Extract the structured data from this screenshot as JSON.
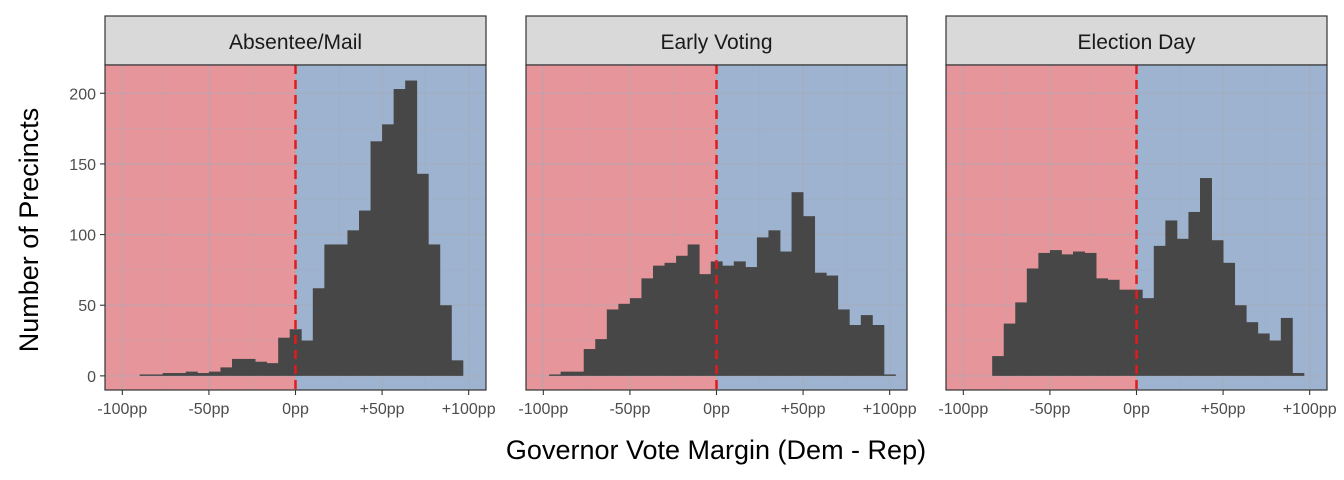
{
  "chart_data": {
    "type": "bar",
    "subtype": "faceted-histogram",
    "xlabel": "Governor Vote Margin (Dem - Rep)",
    "ylabel": "Number of Precincts",
    "xlim": [
      -110,
      110
    ],
    "ylim": [
      -10,
      220
    ],
    "x_ticks": [
      -100,
      -50,
      0,
      50,
      100
    ],
    "x_tick_labels": [
      "-100pp",
      "-50pp",
      "0pp",
      "+50pp",
      "+100pp"
    ],
    "y_ticks": [
      0,
      50,
      100,
      150,
      200
    ],
    "y_tick_labels": [
      "0",
      "50",
      "100",
      "150",
      "200"
    ],
    "bin_width": 6.67,
    "reference_line": {
      "x": 0,
      "style": "dashed",
      "color": "#e41a1c"
    },
    "background_regions": [
      {
        "from": -110,
        "to": 0,
        "color": "#e6969b"
      },
      {
        "from": 0,
        "to": 110,
        "color": "#9db3cf"
      }
    ],
    "bar_color": "#474747",
    "grid": true,
    "facets": [
      {
        "title": "Absentee/Mail",
        "bins": [
          {
            "x": -93.33,
            "y": 0
          },
          {
            "x": -86.67,
            "y": 1
          },
          {
            "x": -80,
            "y": 1
          },
          {
            "x": -73.33,
            "y": 2
          },
          {
            "x": -66.67,
            "y": 2
          },
          {
            "x": -60,
            "y": 3
          },
          {
            "x": -53.33,
            "y": 2
          },
          {
            "x": -46.67,
            "y": 3
          },
          {
            "x": -40,
            "y": 6
          },
          {
            "x": -33.33,
            "y": 12
          },
          {
            "x": -26.67,
            "y": 12
          },
          {
            "x": -20,
            "y": 10
          },
          {
            "x": -13.33,
            "y": 9
          },
          {
            "x": -6.67,
            "y": 27
          },
          {
            "x": 0,
            "y": 33
          },
          {
            "x": 6.67,
            "y": 25
          },
          {
            "x": 13.33,
            "y": 62
          },
          {
            "x": 20,
            "y": 93
          },
          {
            "x": 26.67,
            "y": 93
          },
          {
            "x": 33.33,
            "y": 103
          },
          {
            "x": 40,
            "y": 117
          },
          {
            "x": 46.67,
            "y": 166
          },
          {
            "x": 53.33,
            "y": 178
          },
          {
            "x": 60,
            "y": 203
          },
          {
            "x": 66.67,
            "y": 209
          },
          {
            "x": 73.33,
            "y": 143
          },
          {
            "x": 80,
            "y": 93
          },
          {
            "x": 86.67,
            "y": 50
          },
          {
            "x": 93.33,
            "y": 11
          }
        ]
      },
      {
        "title": "Early Voting",
        "bins": [
          {
            "x": -93.33,
            "y": 1
          },
          {
            "x": -86.67,
            "y": 3
          },
          {
            "x": -80,
            "y": 3
          },
          {
            "x": -73.33,
            "y": 19
          },
          {
            "x": -66.67,
            "y": 26
          },
          {
            "x": -60,
            "y": 47
          },
          {
            "x": -53.33,
            "y": 51
          },
          {
            "x": -46.67,
            "y": 55
          },
          {
            "x": -40,
            "y": 69
          },
          {
            "x": -33.33,
            "y": 78
          },
          {
            "x": -26.67,
            "y": 80
          },
          {
            "x": -20,
            "y": 85
          },
          {
            "x": -13.33,
            "y": 93
          },
          {
            "x": -6.67,
            "y": 72
          },
          {
            "x": 0,
            "y": 81
          },
          {
            "x": 6.67,
            "y": 78
          },
          {
            "x": 13.33,
            "y": 81
          },
          {
            "x": 20,
            "y": 77
          },
          {
            "x": 26.67,
            "y": 98
          },
          {
            "x": 33.33,
            "y": 103
          },
          {
            "x": 40,
            "y": 88
          },
          {
            "x": 46.67,
            "y": 130
          },
          {
            "x": 53.33,
            "y": 113
          },
          {
            "x": 60,
            "y": 73
          },
          {
            "x": 66.67,
            "y": 71
          },
          {
            "x": 73.33,
            "y": 47
          },
          {
            "x": 80,
            "y": 36
          },
          {
            "x": 86.67,
            "y": 43
          },
          {
            "x": 93.33,
            "y": 36
          },
          {
            "x": 100,
            "y": 1
          }
        ]
      },
      {
        "title": "Election Day",
        "bins": [
          {
            "x": -80,
            "y": 14
          },
          {
            "x": -73.33,
            "y": 37
          },
          {
            "x": -66.67,
            "y": 52
          },
          {
            "x": -60,
            "y": 76
          },
          {
            "x": -53.33,
            "y": 87
          },
          {
            "x": -46.67,
            "y": 89
          },
          {
            "x": -40,
            "y": 86
          },
          {
            "x": -33.33,
            "y": 88
          },
          {
            "x": -26.67,
            "y": 87
          },
          {
            "x": -20,
            "y": 69
          },
          {
            "x": -13.33,
            "y": 68
          },
          {
            "x": -6.67,
            "y": 61
          },
          {
            "x": 0,
            "y": 61
          },
          {
            "x": 6.67,
            "y": 55
          },
          {
            "x": 13.33,
            "y": 92
          },
          {
            "x": 20,
            "y": 110
          },
          {
            "x": 26.67,
            "y": 97
          },
          {
            "x": 33.33,
            "y": 116
          },
          {
            "x": 40,
            "y": 140
          },
          {
            "x": 46.67,
            "y": 96
          },
          {
            "x": 53.33,
            "y": 80
          },
          {
            "x": 60,
            "y": 50
          },
          {
            "x": 66.67,
            "y": 38
          },
          {
            "x": 73.33,
            "y": 30
          },
          {
            "x": 80,
            "y": 25
          },
          {
            "x": 86.67,
            "y": 41
          },
          {
            "x": 93.33,
            "y": 2
          }
        ]
      }
    ]
  }
}
